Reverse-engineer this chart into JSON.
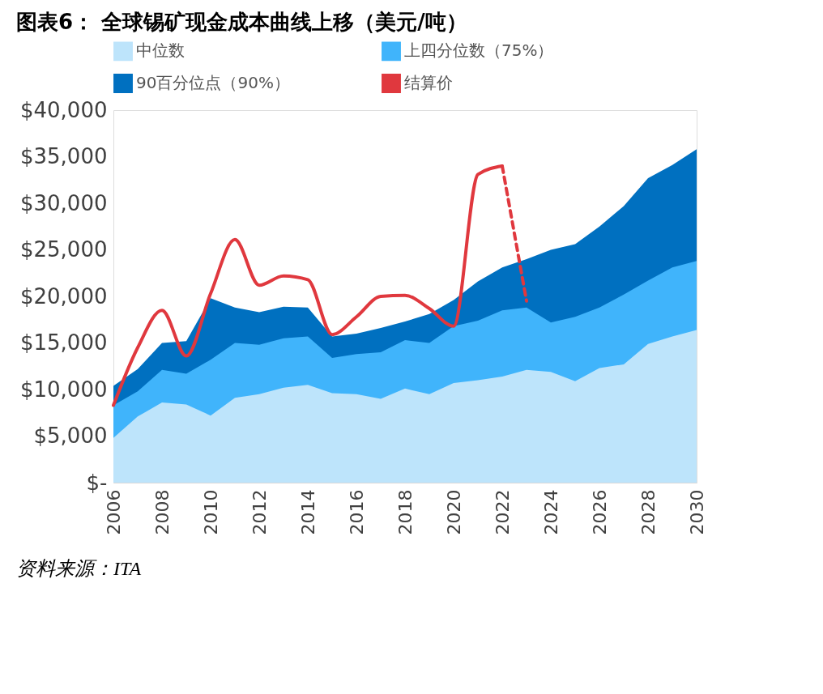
{
  "chart_data": {
    "type": "area",
    "title": "图表6：  全球锡矿现金成本曲线上移（美元/吨）",
    "x": [
      2006,
      2007,
      2008,
      2009,
      2010,
      2011,
      2012,
      2013,
      2014,
      2015,
      2016,
      2017,
      2018,
      2019,
      2020,
      2021,
      2022,
      2023,
      2024,
      2025,
      2026,
      2027,
      2028,
      2029,
      2030
    ],
    "series": [
      {
        "name": "中位数",
        "color": "#bde4fb",
        "values": [
          4800,
          7100,
          8600,
          8400,
          7200,
          9100,
          9500,
          10200,
          10500,
          9600,
          9500,
          9000,
          10100,
          9500,
          10700,
          11000,
          11400,
          12100,
          11900,
          10900,
          12300,
          12700,
          14900,
          15700,
          16400
        ]
      },
      {
        "name": "上四分位数（75%）",
        "color": "#40b4fb",
        "values": [
          8300,
          9800,
          12100,
          11700,
          13200,
          15000,
          14800,
          15500,
          15700,
          13400,
          13800,
          14000,
          15300,
          15000,
          16800,
          17400,
          18500,
          18800,
          17200,
          17800,
          18800,
          20200,
          21700,
          23100,
          23800
        ]
      },
      {
        "name": "90百分位点（90%）",
        "color": "#0070c0",
        "values": [
          10400,
          12200,
          15000,
          15200,
          19800,
          18800,
          18300,
          18900,
          18800,
          15700,
          16000,
          16600,
          17300,
          18100,
          19600,
          21600,
          23100,
          24000,
          25000,
          25600,
          27500,
          29700,
          32700,
          34100,
          35800
        ]
      },
      {
        "name": "结算价",
        "type": "line",
        "color": "#e0383e",
        "line_style": "solid",
        "x": [
          2006,
          2007,
          2008,
          2009,
          2010,
          2011,
          2012,
          2013,
          2014,
          2015,
          2016,
          2017,
          2018,
          2019,
          2020,
          2021,
          2022
        ],
        "values": [
          8300,
          14500,
          18500,
          13600,
          20300,
          26100,
          21200,
          22200,
          21800,
          15900,
          17800,
          20000,
          20100,
          18700,
          16800,
          33100,
          34000
        ]
      },
      {
        "type": "line",
        "color": "#e0383e",
        "line_style": "dashed",
        "x": [
          2022,
          2023
        ],
        "values": [
          34000,
          19500
        ]
      }
    ],
    "xlim": [
      2006,
      2030
    ],
    "xticks": [
      2006,
      2008,
      2010,
      2012,
      2014,
      2016,
      2018,
      2020,
      2022,
      2024,
      2026,
      2028,
      2030
    ],
    "ylim": [
      0,
      40000
    ],
    "yticks": [
      {
        "value": 0,
        "label": "$-"
      },
      {
        "value": 5000,
        "label": "$5,000"
      },
      {
        "value": 10000,
        "label": "$10,000"
      },
      {
        "value": 15000,
        "label": "$15,000"
      },
      {
        "value": 20000,
        "label": "$20,000"
      },
      {
        "value": 25000,
        "label": "$25,000"
      },
      {
        "value": 30000,
        "label": "$30,000"
      },
      {
        "value": 35000,
        "label": "$35,000"
      },
      {
        "value": 40000,
        "label": "$40,000"
      }
    ],
    "legend": "top",
    "grid": false,
    "marker": "none",
    "annotations": [
      "资料来源：ITA"
    ]
  }
}
